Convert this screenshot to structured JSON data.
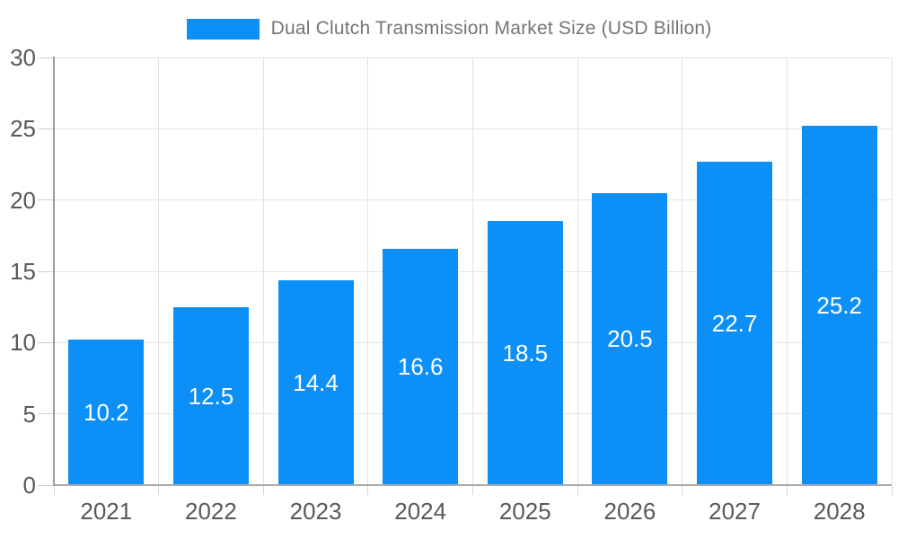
{
  "chart_data": {
    "type": "bar",
    "title": "Dual Clutch Transmission Market Size (USD Billion)",
    "legend_entries": [
      "Dual Clutch Transmission Market Size (USD Billion)"
    ],
    "legend_position": "top",
    "categories": [
      "2021",
      "2022",
      "2023",
      "2024",
      "2025",
      "2026",
      "2027",
      "2028"
    ],
    "values": [
      10.2,
      12.5,
      14.4,
      16.6,
      18.5,
      20.5,
      22.7,
      25.2
    ],
    "value_labels": [
      "10.2",
      "12.5",
      "14.4",
      "16.6",
      "18.5",
      "20.5",
      "22.7",
      "25.2"
    ],
    "yticks": [
      "0",
      "5",
      "10",
      "15",
      "20",
      "25",
      "30"
    ],
    "ytick_values": [
      0,
      5,
      10,
      15,
      20,
      25,
      30
    ],
    "ylim": [
      0,
      30
    ],
    "xlabel": "",
    "ylabel": "",
    "grid": true,
    "bar_color": "#0d8ff8",
    "value_label_color": "#ffffff",
    "axis_label_color": "#595959",
    "title_color": "#757575"
  }
}
